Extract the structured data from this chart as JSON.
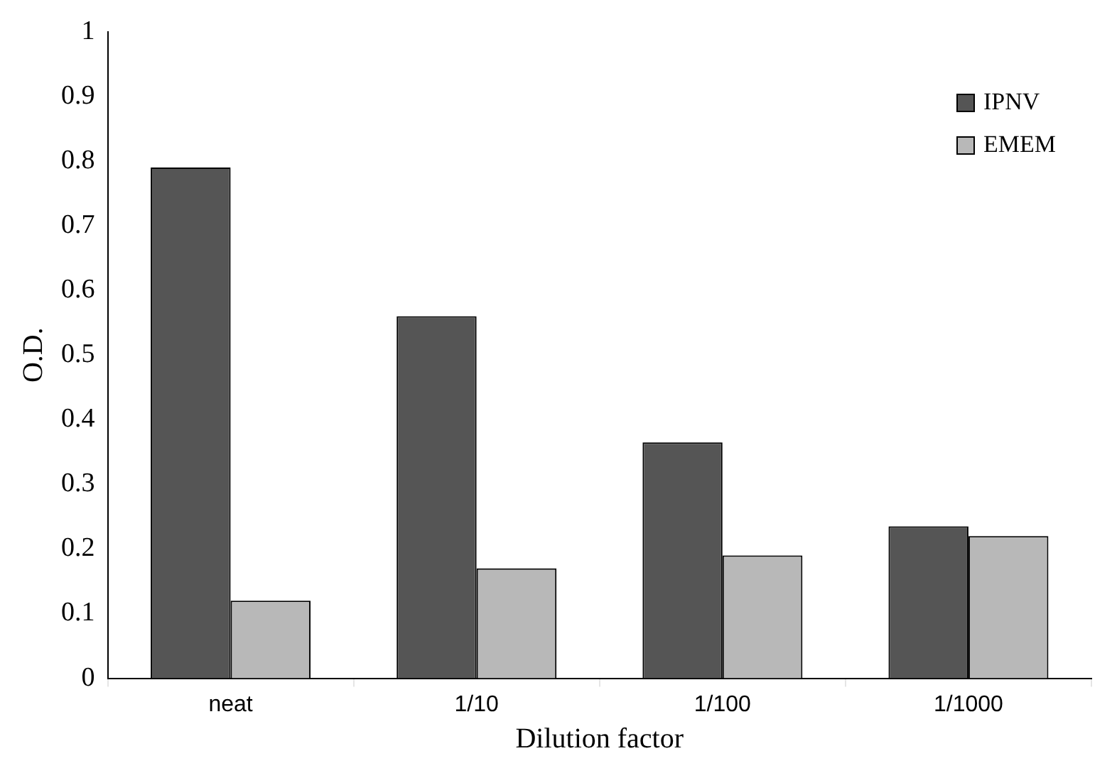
{
  "chart_data": {
    "type": "bar",
    "xlabel": "Dilution factor",
    "ylabel": "O.D.",
    "categories": [
      "neat",
      "1/10",
      "1/100",
      "1/1000"
    ],
    "series": [
      {
        "name": "IPNV",
        "color": "#555555",
        "values": [
          0.79,
          0.56,
          0.365,
          0.235
        ]
      },
      {
        "name": "EMEM",
        "color": "#b8b8b8",
        "values": [
          0.12,
          0.17,
          0.19,
          0.22
        ]
      }
    ],
    "ylim": [
      0,
      1
    ],
    "yticks": [
      0,
      0.1,
      0.2,
      0.3,
      0.4,
      0.5,
      0.6,
      0.7,
      0.8,
      0.9,
      1
    ],
    "grid": false,
    "legend": "top right"
  }
}
